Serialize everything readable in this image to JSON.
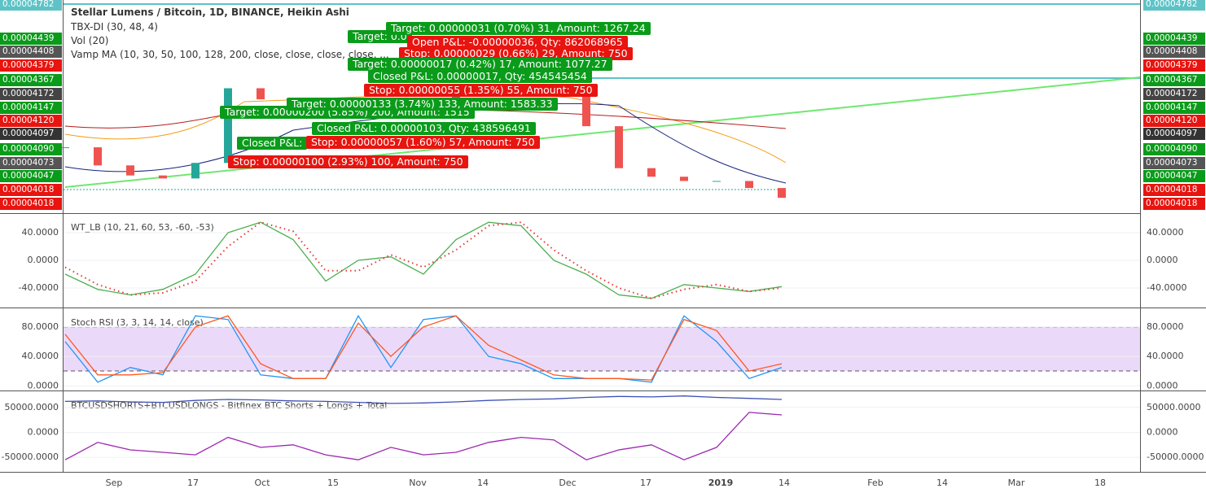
{
  "header": {
    "title": "Stellar Lumens / Bitcoin, 1D, BINANCE, Heikin Ashi",
    "indicators": [
      "TBX-DI (30, 48, 4)",
      "Vol (20)",
      "Vamp MA (10, 30, 50, 100, 128, 200, close, close, close, close, ..."
    ]
  },
  "price_labels": [
    {
      "text": "0.00004782",
      "color": "#5dc3c6"
    },
    {
      "text": "0.00004439",
      "color": "#0a9b1a"
    },
    {
      "text": "0.00004408",
      "color": "#555555"
    },
    {
      "text": "0.00004379",
      "color": "#e8140f"
    },
    {
      "text": "0.00004367",
      "color": "#0a9b1a"
    },
    {
      "text": "0.00004172",
      "color": "#444444"
    },
    {
      "text": "0.00004147",
      "color": "#0a9b1a"
    },
    {
      "text": "0.00004120",
      "color": "#e8140f"
    },
    {
      "text": "0.00004097",
      "color": "#333333"
    },
    {
      "text": "0.00004090",
      "color": "#0a9b1a"
    },
    {
      "text": "0.00004073",
      "color": "#555555"
    },
    {
      "text": "0.00004047",
      "color": "#0a9b1a"
    },
    {
      "text": "0.00004018",
      "color": "#e8140f"
    },
    {
      "text": "0.00004018",
      "color": "#e8140f"
    }
  ],
  "trade_labels": [
    {
      "text": "Target: 0.0",
      "color": "#0a9b1a"
    },
    {
      "text": "Target: 0.00000031 (0.70%) 31, Amount: 1267.24",
      "color": "#0a9b1a"
    },
    {
      "text": "Open P&L: -0.00000036, Qty: 862068965",
      "color": "#e8140f"
    },
    {
      "text": "Stop: 0.00000029 (0.66%) 29, Amount: 750",
      "color": "#e8140f"
    },
    {
      "text": "Target: 0.00000017 (0.42%) 17, Amount: 1077.27",
      "color": "#0a9b1a"
    },
    {
      "text": "Closed P&L: 0.00000017, Qty: 454545454",
      "color": "#0a9b1a"
    },
    {
      "text": "Stop: 0.00000055 (1.35%) 55, Amount: 750",
      "color": "#e8140f"
    },
    {
      "text": "Target: 0.00000200 (5.85%) 200, Amount: 1515",
      "color": "#0a9b1a"
    },
    {
      "text": "Target: 0.00000133 (3.74%) 133, Amount: 1583.33",
      "color": "#0a9b1a"
    },
    {
      "text": "Closed P&L: 0.00000103, Qty: 438596491",
      "color": "#0a9b1a"
    },
    {
      "text": "Closed P&L:",
      "color": "#0a9b1a"
    },
    {
      "text": "Stop: 0.00000057 (1.60%) 57, Amount: 750",
      "color": "#e8140f"
    },
    {
      "text": "Stop: 0.00000100 (2.93%) 100, Amount: 750",
      "color": "#e8140f"
    }
  ],
  "price_series": {
    "ylim": [
      3.95e-05,
      4.782e-05
    ],
    "up_color": "#26a69a",
    "down_color": "#ef5350",
    "closes": [
      4.212e-05,
      4.14e-05,
      4.1e-05,
      4.088e-05,
      4.15e-05,
      4.447e-05,
      4.403e-05,
      4.37e-05,
      4.346e-05,
      4.33e-05,
      4.363e-05,
      4.397e-05,
      4.42e-05,
      4.46e-05,
      4.447e-05,
      4.43e-05,
      4.296e-05,
      4.129e-05,
      4.095e-05,
      4.078e-05,
      4.078e-05,
      4.05e-05,
      4.011e-05
    ]
  },
  "panels": [
    {
      "title": "WT_LB (10, 21, 60, 53, -60, -53)",
      "ylim": [
        -67,
        67
      ],
      "ticks": [
        {
          "value": 40,
          "label": "40.0000"
        },
        {
          "value": 0,
          "label": "0.0000"
        },
        {
          "value": -40,
          "label": "-40.0000"
        }
      ],
      "series": [
        {
          "color": "#4caf50",
          "dash": false,
          "values": [
            -20,
            -42,
            -50,
            -42,
            -20,
            40,
            55,
            30,
            -30,
            0,
            5,
            -20,
            30,
            55,
            50,
            0,
            -20,
            -50,
            -55,
            -35,
            -40,
            -45,
            -38
          ]
        },
        {
          "color": "#e53935",
          "dash": true,
          "values": [
            -10,
            -35,
            -50,
            -47,
            -30,
            20,
            55,
            42,
            -15,
            -15,
            8,
            -10,
            15,
            50,
            55,
            15,
            -15,
            -40,
            -55,
            -42,
            -35,
            -45,
            -40
          ]
        }
      ]
    },
    {
      "title": "Stoch RSI (3, 3, 14, 14, close)",
      "ylim": [
        -4,
        104
      ],
      "ticks": [
        {
          "value": 80,
          "label": "80.0000"
        },
        {
          "value": 40,
          "label": "40.0000"
        },
        {
          "value": 0,
          "label": "0.0000"
        }
      ],
      "series": [
        {
          "color": "#2196f3",
          "dash": false,
          "values": [
            60,
            5,
            25,
            15,
            95,
            90,
            15,
            10,
            10,
            95,
            25,
            90,
            95,
            40,
            30,
            10,
            10,
            10,
            5,
            95,
            60,
            10,
            25
          ]
        },
        {
          "color": "#ff5722",
          "dash": false,
          "values": [
            70,
            15,
            15,
            18,
            80,
            95,
            30,
            10,
            10,
            85,
            40,
            80,
            95,
            55,
            35,
            15,
            10,
            10,
            8,
            90,
            75,
            20,
            30
          ]
        }
      ]
    },
    {
      "title": "BTCUSDSHORTS+BTCUSDLONGS - Bitfinex BTC Shorts + Longs + Total",
      "ylim": [
        -77400,
        80600
      ],
      "ticks": [
        {
          "value": 50000,
          "label": "50000.0000"
        },
        {
          "value": 0,
          "label": "0.0000"
        },
        {
          "value": -50000,
          "label": "-50000.0000"
        }
      ],
      "series": [
        {
          "color": "#3f51b5",
          "dash": false,
          "values": [
            62000,
            63000,
            61000,
            60000,
            64000,
            66000,
            65000,
            63000,
            62000,
            60000,
            58000,
            59000,
            61000,
            64000,
            66000,
            67000,
            70000,
            72000,
            71000,
            73000,
            70000,
            68000,
            66000
          ]
        },
        {
          "color": "#9c27b0",
          "dash": false,
          "values": [
            -55000,
            -20000,
            -35000,
            -40000,
            -45000,
            -10000,
            -30000,
            -25000,
            -45000,
            -55000,
            -30000,
            -45000,
            -40000,
            -20000,
            -10000,
            -15000,
            -55000,
            -35000,
            -25000,
            -55000,
            -30000,
            40000,
            35000
          ]
        }
      ]
    }
  ],
  "x_axis": {
    "labels": [
      "Sep",
      "17",
      "Oct",
      "15",
      "Nov",
      "14",
      "Dec",
      "17",
      "2019",
      "14",
      "Feb",
      "14",
      "Mar",
      "18"
    ]
  }
}
